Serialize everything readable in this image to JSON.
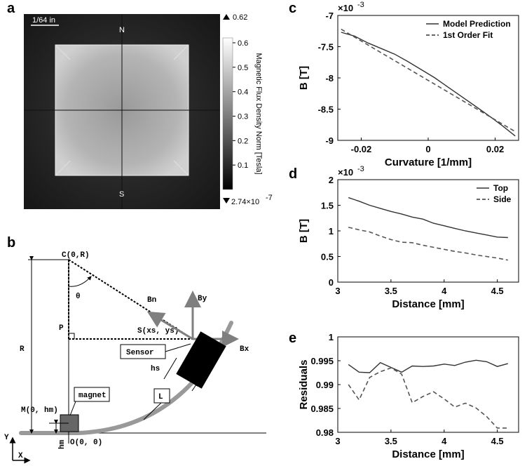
{
  "panels": {
    "a": "a",
    "b": "b",
    "c": "c",
    "d": "d",
    "e": "e"
  },
  "panel_a": {
    "scale_label": "1/64 in",
    "north": "N",
    "south": "S",
    "colorbar_title": "Magnetic Flux Density Norm [Tesla]",
    "colorbar_max": "0.62",
    "colorbar_min": "2.74×10",
    "colorbar_min_exp": "-7",
    "colorbar_ticks": [
      "0.6",
      "0.5",
      "0.4",
      "0.3",
      "0.2",
      "0.1"
    ]
  },
  "panel_b": {
    "C": "C(0,R)",
    "theta": "θ",
    "Bn": "Bn",
    "By": "By",
    "Bx": "Bx",
    "P": "P",
    "S": "S(xs, ys)",
    "R": "R",
    "sensor": "Sensor",
    "hs": "hs",
    "M": "M(0, hm)",
    "magnet": "magnet",
    "L": "L",
    "O": "O(0, 0)",
    "hm": "hm",
    "Y": "Y",
    "X": "X"
  },
  "chart_data": [
    {
      "id": "c",
      "type": "line",
      "xlabel": "Curvature [1/mm]",
      "ylabel": "B [T]",
      "multiplier": "×10",
      "multiplier_exp": "-3",
      "xlim": [
        -0.027,
        0.027
      ],
      "ylim": [
        -9,
        -7
      ],
      "xticks": [
        -0.02,
        0,
        0.02
      ],
      "xtick_labels": [
        "-0.02",
        "0",
        "0.02"
      ],
      "yticks": [
        -7,
        -7.5,
        -8,
        -8.5,
        -9
      ],
      "ytick_labels": [
        "-7",
        "-7.5",
        "-8",
        "-8.5",
        "-9"
      ],
      "legend": [
        "Model Prediction",
        "1st Order Fit"
      ],
      "series": [
        {
          "name": "Model Prediction",
          "style": "solid",
          "x": [
            -0.026,
            -0.022,
            -0.018,
            -0.014,
            -0.01,
            -0.006,
            -0.002,
            0.002,
            0.006,
            0.01,
            0.014,
            0.018,
            0.022,
            0.026
          ],
          "y": [
            -7.27,
            -7.33,
            -7.44,
            -7.53,
            -7.62,
            -7.74,
            -7.87,
            -8.0,
            -8.15,
            -8.3,
            -8.45,
            -8.6,
            -8.76,
            -8.93
          ]
        },
        {
          "name": "1st Order Fit",
          "style": "dashed",
          "x": [
            -0.026,
            0.026
          ],
          "y": [
            -7.22,
            -8.86
          ]
        }
      ]
    },
    {
      "id": "d",
      "type": "line",
      "xlabel": "Distance [mm]",
      "ylabel": "B [T]",
      "multiplier": "×10",
      "multiplier_exp": "-3",
      "xlim": [
        3.0,
        4.7
      ],
      "ylim": [
        0,
        2
      ],
      "xticks": [
        3,
        3.5,
        4,
        4.5
      ],
      "xtick_labels": [
        "3",
        "3.5",
        "4",
        "4.5"
      ],
      "yticks": [
        0,
        0.5,
        1,
        1.5,
        2
      ],
      "ytick_labels": [
        "0",
        "0.5",
        "1",
        "1.5",
        "2"
      ],
      "legend": [
        "Top",
        "Side"
      ],
      "series": [
        {
          "name": "Top",
          "style": "solid",
          "x": [
            3.1,
            3.2,
            3.3,
            3.4,
            3.5,
            3.6,
            3.7,
            3.8,
            3.9,
            4.0,
            4.1,
            4.2,
            4.3,
            4.4,
            4.5,
            4.6
          ],
          "y": [
            1.65,
            1.58,
            1.5,
            1.44,
            1.38,
            1.33,
            1.27,
            1.23,
            1.15,
            1.1,
            1.05,
            1.0,
            0.96,
            0.92,
            0.88,
            0.87
          ]
        },
        {
          "name": "Side",
          "style": "dashed",
          "x": [
            3.1,
            3.2,
            3.3,
            3.4,
            3.5,
            3.6,
            3.7,
            3.8,
            3.9,
            4.0,
            4.1,
            4.2,
            4.3,
            4.4,
            4.5,
            4.6
          ],
          "y": [
            1.07,
            1.02,
            0.98,
            0.9,
            0.83,
            0.78,
            0.77,
            0.72,
            0.68,
            0.64,
            0.6,
            0.57,
            0.53,
            0.5,
            0.47,
            0.43
          ]
        }
      ]
    },
    {
      "id": "e",
      "type": "line",
      "xlabel": "Distance [mm]",
      "ylabel": "Residuals",
      "xlim": [
        3.0,
        4.7
      ],
      "ylim": [
        0.98,
        1.0
      ],
      "xticks": [
        3,
        3.5,
        4,
        4.5
      ],
      "xtick_labels": [
        "3",
        "3.5",
        "4",
        "4.5"
      ],
      "yticks": [
        0.98,
        0.985,
        0.99,
        0.995,
        1.0
      ],
      "ytick_labels": [
        "0.98",
        "0.985",
        "0.99",
        "0.995",
        "1"
      ],
      "series": [
        {
          "name": "Top",
          "style": "solid",
          "x": [
            3.1,
            3.2,
            3.3,
            3.4,
            3.5,
            3.6,
            3.7,
            3.8,
            3.9,
            4.0,
            4.1,
            4.2,
            4.3,
            4.4,
            4.5,
            4.6
          ],
          "y": [
            0.9942,
            0.9926,
            0.9925,
            0.9946,
            0.9936,
            0.9926,
            0.9939,
            0.9938,
            0.9939,
            0.9943,
            0.994,
            0.9947,
            0.9951,
            0.9948,
            0.9938,
            0.9944
          ]
        },
        {
          "name": "Side",
          "style": "dashed",
          "x": [
            3.1,
            3.2,
            3.3,
            3.4,
            3.5,
            3.6,
            3.7,
            3.8,
            3.9,
            4.0,
            4.1,
            4.2,
            4.3,
            4.4,
            4.5,
            4.6
          ],
          "y": [
            0.99,
            0.9868,
            0.9915,
            0.9927,
            0.9935,
            0.9922,
            0.9862,
            0.9875,
            0.9885,
            0.987,
            0.9853,
            0.9861,
            0.9851,
            0.9833,
            0.9809,
            0.9809
          ]
        }
      ]
    }
  ]
}
